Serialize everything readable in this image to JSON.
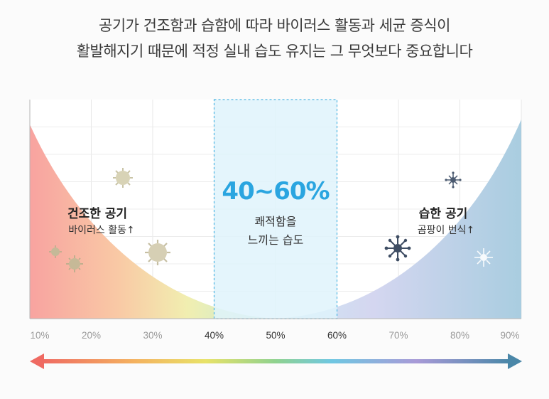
{
  "headline": {
    "line1": "공기가 건조함과 습함에 따라 바이러스 활동과 세균 증식이",
    "line2": "활발해지기 때문에 적정 실내 습도 유지는 그 무엇보다 중요합니다"
  },
  "zones": {
    "dry": {
      "title": "건조한 공기",
      "subtitle": "바이러스 활동↑",
      "icon": "virus-icon"
    },
    "optimal": {
      "range": "40~60%",
      "line1": "쾌적함을",
      "line2": "느끼는 습도"
    },
    "humid": {
      "title": "습한 공기",
      "subtitle": "곰팡이 번식↑",
      "icon": "mold-icon"
    }
  },
  "chart_data": {
    "type": "area",
    "x_ticks": [
      "10%",
      "20%",
      "30%",
      "40%",
      "50%",
      "60%",
      "70%",
      "80%",
      "90%"
    ],
    "x_range": [
      10,
      90
    ],
    "highlight_range": [
      40,
      60
    ],
    "curve_minimum_x": 50
  },
  "colors": {
    "optimal_fill": "#dff3fb",
    "optimal_border": "#4fb6e3",
    "optimal_text": "#2aa5e0",
    "dry_color": "#f6a19c",
    "humid_color": "#9ec3d9",
    "arrow_left": "#ef6a62",
    "arrow_right": "#4a87a8"
  }
}
